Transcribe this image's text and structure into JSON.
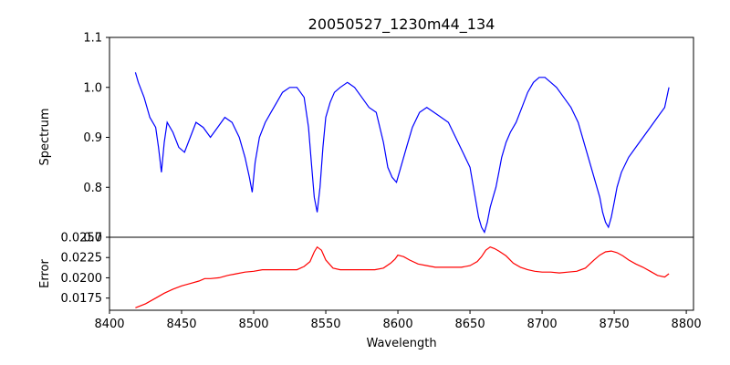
{
  "chart_data": [
    {
      "type": "line",
      "title": "20050527_1230m44_134",
      "xlabel": "",
      "ylabel": "Spectrum",
      "xlim": [
        8400,
        8805
      ],
      "ylim": [
        0.7,
        1.1
      ],
      "x_ticks": [],
      "y_ticks": [
        0.7,
        0.8,
        0.9,
        1.0,
        1.1
      ],
      "y_tick_labels": [
        "0.7",
        "0.8",
        "0.9",
        "1.0",
        "1.1"
      ],
      "grid": false,
      "series": [
        {
          "color": "#0000ff",
          "x": [
            8418,
            8420,
            8424,
            8428,
            8432,
            8434,
            8436,
            8438,
            8440,
            8444,
            8448,
            8452,
            8456,
            8460,
            8465,
            8470,
            8475,
            8480,
            8485,
            8490,
            8494,
            8497,
            8499,
            8501,
            8504,
            8508,
            8512,
            8516,
            8520,
            8525,
            8530,
            8535,
            8538,
            8540,
            8542,
            8544,
            8546,
            8548,
            8550,
            8553,
            8556,
            8560,
            8565,
            8570,
            8575,
            8580,
            8585,
            8590,
            8593,
            8596,
            8599,
            8602,
            8606,
            8610,
            8615,
            8620,
            8625,
            8630,
            8635,
            8640,
            8645,
            8650,
            8653,
            8656,
            8658,
            8660,
            8662,
            8664,
            8666,
            8668,
            8670,
            8672,
            8675,
            8678,
            8682,
            8686,
            8690,
            8694,
            8698,
            8702,
            8706,
            8710,
            8715,
            8720,
            8725,
            8730,
            8735,
            8740,
            8742,
            8744,
            8746,
            8748,
            8750,
            8752,
            8755,
            8760,
            8765,
            8770,
            8775,
            8780,
            8785,
            8788
          ],
          "y": [
            1.03,
            1.01,
            0.98,
            0.94,
            0.92,
            0.88,
            0.83,
            0.89,
            0.93,
            0.91,
            0.88,
            0.87,
            0.9,
            0.93,
            0.92,
            0.9,
            0.92,
            0.94,
            0.93,
            0.9,
            0.86,
            0.82,
            0.79,
            0.85,
            0.9,
            0.93,
            0.95,
            0.97,
            0.99,
            1.0,
            1.0,
            0.98,
            0.92,
            0.85,
            0.78,
            0.75,
            0.8,
            0.88,
            0.94,
            0.97,
            0.99,
            1.0,
            1.01,
            1.0,
            0.98,
            0.96,
            0.95,
            0.89,
            0.84,
            0.82,
            0.81,
            0.84,
            0.88,
            0.92,
            0.95,
            0.96,
            0.95,
            0.94,
            0.93,
            0.9,
            0.87,
            0.84,
            0.79,
            0.74,
            0.72,
            0.71,
            0.73,
            0.76,
            0.78,
            0.8,
            0.83,
            0.86,
            0.89,
            0.91,
            0.93,
            0.96,
            0.99,
            1.01,
            1.02,
            1.02,
            1.01,
            1.0,
            0.98,
            0.96,
            0.93,
            0.88,
            0.83,
            0.78,
            0.75,
            0.73,
            0.72,
            0.74,
            0.77,
            0.8,
            0.83,
            0.86,
            0.88,
            0.9,
            0.92,
            0.94,
            0.96,
            1.0
          ]
        }
      ]
    },
    {
      "type": "line",
      "title": "",
      "xlabel": "Wavelength",
      "ylabel": "Error",
      "xlim": [
        8400,
        8805
      ],
      "ylim": [
        0.016,
        0.025
      ],
      "x_ticks": [
        8400,
        8450,
        8500,
        8550,
        8600,
        8650,
        8700,
        8750,
        8800
      ],
      "x_tick_labels": [
        "8400",
        "8450",
        "8500",
        "8550",
        "8600",
        "8650",
        "8700",
        "8750",
        "8800"
      ],
      "y_ticks": [
        0.0175,
        0.02,
        0.0225,
        0.025
      ],
      "y_tick_labels": [
        "0.0175",
        "0.0200",
        "0.0225",
        "0.0250"
      ],
      "grid": false,
      "series": [
        {
          "color": "#ff0000",
          "x": [
            8418,
            8425,
            8432,
            8438,
            8444,
            8450,
            8456,
            8462,
            8466,
            8470,
            8476,
            8482,
            8488,
            8494,
            8500,
            8506,
            8512,
            8518,
            8524,
            8530,
            8535,
            8539,
            8542,
            8544,
            8547,
            8550,
            8555,
            8560,
            8566,
            8572,
            8578,
            8584,
            8590,
            8595,
            8598,
            8600,
            8604,
            8608,
            8614,
            8620,
            8626,
            8632,
            8638,
            8644,
            8650,
            8655,
            8658,
            8661,
            8664,
            8667,
            8670,
            8675,
            8680,
            8685,
            8690,
            8695,
            8700,
            8706,
            8712,
            8718,
            8724,
            8730,
            8736,
            8740,
            8744,
            8748,
            8752,
            8756,
            8760,
            8765,
            8770,
            8775,
            8780,
            8785,
            8788
          ],
          "y": [
            0.0163,
            0.0168,
            0.0175,
            0.0181,
            0.0186,
            0.019,
            0.0193,
            0.0196,
            0.0199,
            0.0199,
            0.02,
            0.0203,
            0.0205,
            0.0207,
            0.0208,
            0.021,
            0.021,
            0.021,
            0.021,
            0.021,
            0.0214,
            0.022,
            0.0232,
            0.0238,
            0.0234,
            0.0222,
            0.0212,
            0.021,
            0.021,
            0.021,
            0.021,
            0.021,
            0.0212,
            0.0218,
            0.0223,
            0.0228,
            0.0226,
            0.0222,
            0.0217,
            0.0215,
            0.0213,
            0.0213,
            0.0213,
            0.0213,
            0.0215,
            0.022,
            0.0226,
            0.0234,
            0.0238,
            0.0236,
            0.0233,
            0.0227,
            0.0218,
            0.0213,
            0.021,
            0.0208,
            0.0207,
            0.0207,
            0.0206,
            0.0207,
            0.0208,
            0.0212,
            0.0222,
            0.0228,
            0.0232,
            0.0233,
            0.0231,
            0.0227,
            0.0222,
            0.0217,
            0.0213,
            0.0208,
            0.0203,
            0.0201,
            0.0205
          ]
        }
      ]
    }
  ]
}
